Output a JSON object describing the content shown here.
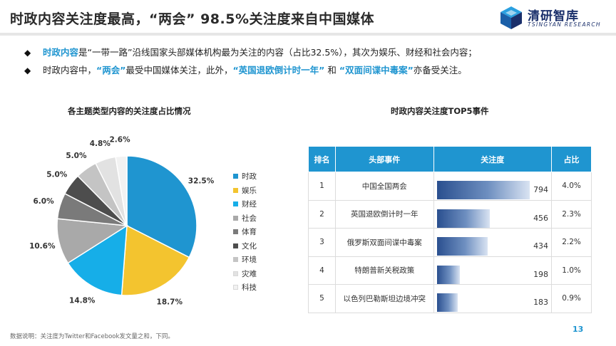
{
  "header": {
    "title": "时政内容关注度最高，“两会” 98.5%关注度来自中国媒体",
    "logo_cn": "清研智库",
    "logo_en": "TSINGYAN RESEARCH"
  },
  "bullets": [
    {
      "p1": "时政内容",
      "p2": "是“一带一路”沿线国家头部媒体机构最为关注的内容（占比32.5%），其次为娱乐、财经和社会内容；"
    },
    {
      "p1": "时政内容中，",
      "p2": "“两会”",
      "p3": "最受中国媒体关注，此外，",
      "p4": "“英国退欧倒计时一年”",
      "p5": " 和 ",
      "p6": "“双面间谍中毒案”",
      "p7": "亦备受关注。"
    }
  ],
  "colors": {
    "accent": "#1f95d0"
  },
  "chart_data": [
    {
      "type": "pie",
      "title": "各主题类型内容的关注度占比情况",
      "categories": [
        "时政",
        "娱乐",
        "财经",
        "社会",
        "体育",
        "文化",
        "环境",
        "灾难",
        "科技"
      ],
      "values": [
        32.5,
        18.7,
        14.8,
        10.6,
        6.0,
        5.0,
        5.0,
        4.8,
        2.6
      ],
      "labels": [
        "32.5%",
        "18.7%",
        "14.8%",
        "10.6%",
        "6.0%",
        "5.0%",
        "5.0%",
        "4.8%",
        "2.6%"
      ],
      "colors": [
        "#1f95d0",
        "#f3c42f",
        "#16aee8",
        "#a9a9a9",
        "#7a7a7a",
        "#4d4d4d",
        "#c4c4c4",
        "#e2e2e2",
        "#f2f2f2"
      ],
      "legend": "right"
    },
    {
      "type": "table",
      "title": "时政内容关注度TOP5事件",
      "columns": [
        "排名",
        "头部事件",
        "关注度",
        "占比"
      ],
      "rows": [
        {
          "rank": "1",
          "event": "中国全国两会",
          "attention": 794,
          "share": "4.0%"
        },
        {
          "rank": "2",
          "event": "英国退欧倒计时一年",
          "attention": 456,
          "share": "2.3%"
        },
        {
          "rank": "3",
          "event": "俄罗斯双面间谍中毒案",
          "attention": 434,
          "share": "2.2%"
        },
        {
          "rank": "4",
          "event": "特朗普新关税政策",
          "attention": 198,
          "share": "1.0%"
        },
        {
          "rank": "5",
          "event": "以色列巴勒斯坦边境冲突",
          "attention": 183,
          "share": "0.9%"
        }
      ],
      "attention_max": 794
    }
  ],
  "footer": {
    "note": "数据说明：关注度为Twitter和Facebook发文量之和，下同。",
    "page": "13"
  }
}
